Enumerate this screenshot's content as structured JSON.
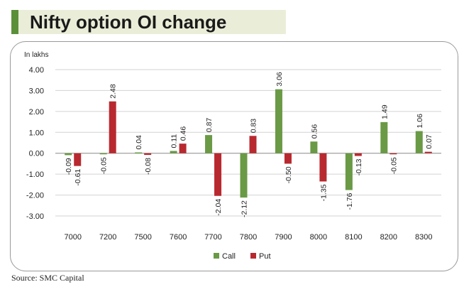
{
  "title": "Nifty option OI change",
  "source": "Source: SMC Capital",
  "chart_data": {
    "type": "bar",
    "unit_label": "In lakhs",
    "categories": [
      "7000",
      "7200",
      "7500",
      "7600",
      "7700",
      "7800",
      "7900",
      "8000",
      "8100",
      "8200",
      "8300"
    ],
    "series": [
      {
        "name": "Call",
        "color": "#6a9a45",
        "values": [
          -0.09,
          -0.05,
          0.04,
          0.11,
          0.87,
          -2.12,
          3.06,
          0.56,
          -1.76,
          1.49,
          1.06
        ]
      },
      {
        "name": "Put",
        "color": "#b8292f",
        "values": [
          -0.61,
          2.48,
          -0.08,
          0.46,
          -2.04,
          0.83,
          -0.5,
          -1.35,
          -0.13,
          -0.05,
          0.07
        ]
      }
    ],
    "value_labels": {
      "Call": [
        "-0.09",
        "-0.05",
        "0.04",
        "0.11",
        "0.87",
        "-2.12",
        "3.06",
        "0.56",
        "-1.76",
        "1.49",
        "1.06"
      ],
      "Put": [
        "-0.61",
        "2.48",
        "-0.08",
        "0.46",
        "-2.04",
        "0.83",
        "-0.50",
        "-1.35",
        "-0.13",
        "-0.05",
        "0.07"
      ]
    },
    "ylim": [
      -3.0,
      4.0
    ],
    "yticks": [
      4.0,
      3.0,
      2.0,
      1.0,
      0.0,
      -1.0,
      -2.0,
      -3.0
    ],
    "ytick_labels": [
      "4.00",
      "3.00",
      "2.00",
      "1.00",
      "0.00",
      "-1.00",
      "-2.00",
      "-3.00"
    ],
    "grid": true,
    "legend": "bottom-center"
  }
}
